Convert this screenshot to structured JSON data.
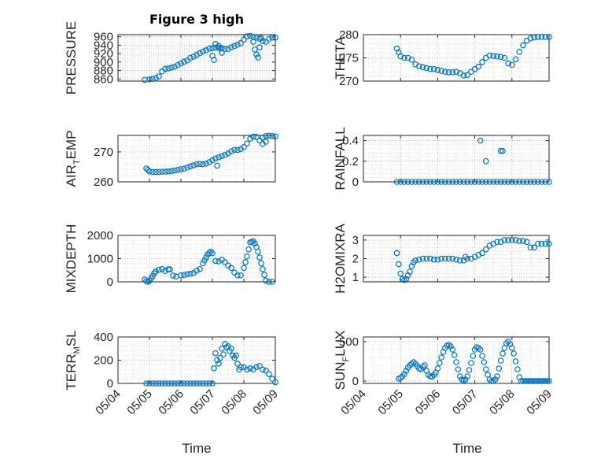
{
  "figure": {
    "title": "Figure 3 high",
    "xlabel": "Time",
    "marker_color": "#0072bd",
    "grid": "on, major and minor dotted"
  },
  "chart_data": [
    {
      "type": "scatter",
      "marker": "circle",
      "ylabel": "PRESSURE",
      "ylabel_sub": "",
      "ylabel_tail": "",
      "ylim": [
        855,
        965
      ],
      "yticks": [
        860,
        880,
        900,
        920,
        940,
        960
      ],
      "xlim": [
        "05/04",
        "05/09"
      ],
      "xticks": [
        "05/04",
        "05/05",
        "05/06",
        "05/07",
        "05/08",
        "05/09"
      ],
      "show_xtick_labels": false,
      "series": [
        {
          "x": [
            4.85,
            5.0,
            5.1,
            5.2,
            5.3,
            5.4,
            5.5,
            5.6,
            5.7,
            5.8,
            5.9,
            6.0,
            6.1,
            6.2,
            6.3,
            6.4,
            6.5,
            6.6,
            6.7,
            6.8,
            6.9,
            7.0,
            7.1,
            7.2,
            7.3,
            7.4,
            7.5,
            7.6,
            7.7,
            7.8,
            7.9,
            8.0,
            8.1,
            8.2,
            8.3,
            8.4,
            8.5,
            8.6,
            8.7,
            8.8,
            8.9,
            9.0,
            7.0,
            7.05,
            7.1,
            7.2,
            7.25,
            7.3,
            8.3,
            8.35,
            8.4,
            8.45,
            8.5,
            8.55
          ],
          "y": [
            858,
            859,
            860,
            862,
            866,
            878,
            884,
            885,
            887,
            889,
            893,
            897,
            901,
            904,
            910,
            913,
            917,
            921,
            925,
            928,
            932,
            933,
            934,
            934,
            933,
            931,
            931,
            935,
            938,
            941,
            945,
            953,
            961,
            962,
            960,
            958,
            955,
            950,
            948,
            955,
            958,
            958,
            915,
            905,
            943,
            938,
            932,
            922,
            948,
            930,
            918,
            911,
            935,
            957
          ]
        }
      ]
    },
    {
      "type": "scatter",
      "marker": "circle",
      "ylabel": "THETA",
      "ylabel_sub": "",
      "ylabel_tail": "",
      "ylim": [
        270,
        280
      ],
      "yticks": [
        270,
        275,
        280
      ],
      "xlim": [
        "05/04",
        "05/09"
      ],
      "xticks": [
        "05/04",
        "05/05",
        "05/06",
        "05/07",
        "05/08",
        "05/09"
      ],
      "show_xtick_labels": false,
      "series": [
        {
          "x": [
            4.9,
            4.95,
            5.0,
            5.1,
            5.2,
            5.3,
            5.4,
            5.5,
            5.6,
            5.7,
            5.8,
            5.9,
            6.0,
            6.1,
            6.2,
            6.3,
            6.4,
            6.5,
            6.6,
            6.7,
            6.8,
            6.9,
            7.0,
            7.1,
            7.2,
            7.3,
            7.4,
            7.5,
            7.6,
            7.7,
            7.8,
            7.9,
            8.0,
            8.1,
            8.2,
            8.3,
            8.4,
            8.5,
            8.6,
            8.7,
            8.8,
            8.9,
            9.0
          ],
          "y": [
            277,
            276.2,
            275.3,
            275,
            275,
            274.6,
            273.6,
            273.2,
            273,
            272.8,
            272.6,
            272.6,
            272.4,
            272.2,
            272,
            271.9,
            271.9,
            272,
            271.7,
            271.2,
            271.3,
            272,
            272.6,
            273.1,
            274.1,
            275,
            275.5,
            275.4,
            275.3,
            275.2,
            275,
            273.8,
            273.5,
            274.7,
            276.3,
            277.7,
            278.7,
            279.2,
            279.4,
            279.5,
            279.5,
            279.5,
            279.5
          ]
        }
      ]
    },
    {
      "type": "scatter",
      "marker": "circle",
      "ylabel": "AIR",
      "ylabel_sub": "T",
      "ylabel_tail": "EMP",
      "ylim": [
        260,
        275.5
      ],
      "yticks": [
        260,
        270
      ],
      "xlim": [
        "05/04",
        "05/09"
      ],
      "xticks": [
        "05/04",
        "05/05",
        "05/06",
        "05/07",
        "05/08",
        "05/09"
      ],
      "show_xtick_labels": false,
      "series": [
        {
          "x": [
            4.9,
            4.95,
            5.0,
            5.1,
            5.2,
            5.3,
            5.4,
            5.5,
            5.6,
            5.7,
            5.8,
            5.9,
            6.0,
            6.1,
            6.2,
            6.3,
            6.4,
            6.5,
            6.6,
            6.7,
            6.8,
            6.9,
            7.0,
            7.1,
            7.2,
            7.3,
            7.4,
            7.5,
            7.6,
            7.7,
            7.8,
            7.9,
            8.0,
            8.1,
            8.2,
            8.3,
            8.4,
            8.5,
            8.6,
            8.7,
            8.8,
            8.9,
            9.0,
            7.15,
            8.6,
            8.7
          ],
          "y": [
            264.5,
            264,
            263.5,
            263.3,
            263.3,
            263.3,
            263.4,
            263.4,
            263.5,
            263.6,
            263.8,
            264,
            264.2,
            264.4,
            264.8,
            265.2,
            265.5,
            265.9,
            266,
            265.9,
            266.1,
            266.6,
            267.2,
            267.8,
            268.2,
            268.6,
            269,
            269.5,
            270.2,
            270.7,
            270.6,
            270.9,
            271.6,
            272.8,
            274.4,
            275.1,
            275,
            273.8,
            274.8,
            275.3,
            275.4,
            275.3,
            275.2,
            265.4,
            272.7,
            273.4
          ]
        }
      ]
    },
    {
      "type": "scatter",
      "marker": "circle",
      "ylabel": "RAINFALL",
      "ylabel_sub": "",
      "ylabel_tail": "",
      "ylim": [
        0,
        0.45
      ],
      "yticks": [
        0,
        0.2,
        0.4
      ],
      "xlim": [
        "05/04",
        "05/09"
      ],
      "xticks": [
        "05/04",
        "05/05",
        "05/06",
        "05/07",
        "05/08",
        "05/09"
      ],
      "show_xtick_labels": false,
      "series": [
        {
          "x": [
            4.9,
            5.0,
            5.1,
            5.2,
            5.3,
            5.4,
            5.5,
            5.6,
            5.7,
            5.8,
            5.9,
            6.0,
            6.1,
            6.2,
            6.3,
            6.4,
            6.5,
            6.6,
            6.7,
            6.8,
            6.9,
            7.0,
            7.1,
            7.2,
            7.3,
            7.4,
            7.5,
            7.6,
            7.7,
            7.8,
            7.9,
            8.0,
            8.1,
            8.2,
            8.3,
            8.4,
            8.5,
            8.6,
            8.7,
            8.8,
            8.9,
            9.0,
            7.15,
            7.3,
            7.7,
            7.75
          ],
          "y": [
            0,
            0,
            0,
            0,
            0,
            0,
            0,
            0,
            0,
            0,
            0,
            0,
            0,
            0,
            0,
            0,
            0,
            0,
            0,
            0,
            0,
            0,
            0,
            0,
            0,
            0,
            0,
            0,
            0,
            0,
            0,
            0,
            0,
            0,
            0,
            0,
            0,
            0,
            0,
            0,
            0,
            0,
            0.4,
            0.2,
            0.3,
            0.3
          ]
        }
      ]
    },
    {
      "type": "scatter",
      "marker": "circle",
      "ylabel": "MIXDEPTH",
      "ylabel_sub": "",
      "ylabel_tail": "",
      "ylim": [
        0,
        2000
      ],
      "yticks": [
        0,
        1000,
        2000
      ],
      "xlim": [
        "05/04",
        "05/09"
      ],
      "xticks": [
        "05/04",
        "05/05",
        "05/06",
        "05/07",
        "05/08",
        "05/09"
      ],
      "show_xtick_labels": false,
      "series": [
        {
          "x": [
            4.85,
            4.9,
            4.95,
            5.0,
            5.05,
            5.1,
            5.15,
            5.2,
            5.3,
            5.4,
            5.5,
            5.6,
            5.65,
            5.75,
            5.85,
            6.0,
            6.1,
            6.2,
            6.3,
            6.4,
            6.5,
            6.6,
            6.7,
            6.75,
            6.8,
            6.85,
            6.9,
            6.95,
            7.0,
            7.1,
            7.2,
            7.3,
            7.4,
            7.5,
            7.6,
            7.7,
            7.8,
            7.9,
            8.0,
            8.05,
            8.1,
            8.15,
            8.2,
            8.25,
            8.3,
            8.35,
            8.4,
            8.45,
            8.5,
            8.55,
            8.6,
            8.65,
            8.7,
            8.8,
            8.9
          ],
          "y": [
            100,
            30,
            0,
            50,
            150,
            250,
            370,
            450,
            520,
            550,
            470,
            540,
            540,
            270,
            230,
            280,
            300,
            330,
            350,
            380,
            480,
            550,
            800,
            920,
            1050,
            1180,
            1250,
            1300,
            1230,
            900,
            880,
            950,
            850,
            700,
            600,
            400,
            280,
            280,
            600,
            850,
            1100,
            1400,
            1700,
            1720,
            1750,
            1650,
            1500,
            1300,
            1050,
            800,
            550,
            300,
            50,
            0,
            0
          ]
        }
      ]
    },
    {
      "type": "scatter",
      "marker": "circle",
      "ylabel": "H2OMIXRA",
      "ylabel_sub": "",
      "ylabel_tail": "",
      "ylim": [
        0.75,
        3.25
      ],
      "yticks": [
        1,
        2,
        3
      ],
      "xlim": [
        "05/04",
        "05/09"
      ],
      "xticks": [
        "05/04",
        "05/05",
        "05/06",
        "05/07",
        "05/08",
        "05/09"
      ],
      "show_xtick_labels": false,
      "series": [
        {
          "x": [
            4.9,
            4.95,
            5.0,
            5.05,
            5.1,
            5.15,
            5.2,
            5.25,
            5.3,
            5.35,
            5.4,
            5.5,
            5.6,
            5.7,
            5.8,
            5.9,
            6.0,
            6.1,
            6.2,
            6.3,
            6.4,
            6.5,
            6.6,
            6.7,
            6.75,
            6.8,
            6.9,
            7.0,
            7.1,
            7.2,
            7.3,
            7.4,
            7.5,
            7.6,
            7.7,
            7.8,
            7.9,
            8.0,
            8.1,
            8.2,
            8.3,
            8.4,
            8.5,
            8.6,
            8.7,
            8.8,
            8.9,
            9.0
          ],
          "y": [
            2.3,
            1.7,
            1.2,
            0.9,
            0.85,
            0.9,
            1.1,
            1.3,
            1.6,
            1.8,
            1.9,
            1.95,
            2,
            2,
            2,
            1.95,
            1.95,
            2,
            2,
            2,
            2,
            1.95,
            1.9,
            1.9,
            2.1,
            2,
            2,
            2.1,
            2.2,
            2.3,
            2.5,
            2.7,
            2.8,
            2.9,
            2.9,
            3,
            3,
            3,
            3,
            2.95,
            2.95,
            2.9,
            2.6,
            2.6,
            2.8,
            2.8,
            2.8,
            2.8
          ]
        }
      ]
    },
    {
      "type": "scatter",
      "marker": "circle",
      "ylabel": "TERR",
      "ylabel_sub": "M",
      "ylabel_tail": "SL",
      "ylim": [
        0,
        400
      ],
      "yticks": [
        0,
        200,
        400
      ],
      "xlim": [
        "05/04",
        "05/09"
      ],
      "xticks": [
        "05/04",
        "05/05",
        "05/06",
        "05/07",
        "05/08",
        "05/09"
      ],
      "show_xtick_labels": true,
      "series": [
        {
          "x": [
            4.9,
            5.0,
            5.1,
            5.2,
            5.3,
            5.4,
            5.5,
            5.6,
            5.7,
            5.8,
            5.9,
            6.0,
            6.1,
            6.2,
            6.3,
            6.4,
            6.5,
            6.6,
            6.7,
            6.8,
            6.9,
            7.0,
            7.05,
            7.1,
            7.15,
            7.2,
            7.25,
            7.3,
            7.35,
            7.4,
            7.45,
            7.5,
            7.55,
            7.6,
            7.65,
            7.7,
            7.75,
            7.8,
            7.85,
            7.9,
            8.0,
            8.1,
            8.2,
            8.3,
            8.4,
            8.5,
            8.6,
            8.7,
            8.8,
            8.9,
            9.0
          ],
          "y": [
            0,
            0,
            0,
            0,
            0,
            0,
            0,
            0,
            0,
            0,
            0,
            0,
            0,
            0,
            0,
            0,
            0,
            0,
            0,
            0,
            0,
            0,
            130,
            260,
            200,
            170,
            220,
            300,
            250,
            340,
            310,
            320,
            280,
            300,
            240,
            220,
            240,
            170,
            120,
            140,
            140,
            120,
            130,
            120,
            140,
            150,
            120,
            110,
            80,
            40,
            10
          ]
        }
      ]
    },
    {
      "type": "scatter",
      "marker": "circle",
      "ylabel": "SUN",
      "ylabel_sub": "F",
      "ylabel_tail": "LUX",
      "ylim": [
        -30,
        560
      ],
      "yticks": [
        0,
        500
      ],
      "xlim": [
        "05/04",
        "05/09"
      ],
      "xticks": [
        "05/04",
        "05/05",
        "05/06",
        "05/07",
        "05/08",
        "05/09"
      ],
      "show_xtick_labels": true,
      "series": [
        {
          "x": [
            4.95,
            5.0,
            5.05,
            5.1,
            5.15,
            5.2,
            5.25,
            5.3,
            5.35,
            5.4,
            5.45,
            5.5,
            5.55,
            5.6,
            5.65,
            5.7,
            5.75,
            5.8,
            5.85,
            5.9,
            5.95,
            6.0,
            6.05,
            6.1,
            6.15,
            6.2,
            6.25,
            6.3,
            6.35,
            6.4,
            6.45,
            6.5,
            6.55,
            6.6,
            6.65,
            6.7,
            6.75,
            6.8,
            6.85,
            6.9,
            6.95,
            7.0,
            7.05,
            7.1,
            7.15,
            7.2,
            7.25,
            7.3,
            7.35,
            7.4,
            7.45,
            7.5,
            7.55,
            7.6,
            7.65,
            7.7,
            7.75,
            7.8,
            7.85,
            7.9,
            7.95,
            8.0,
            8.05,
            8.1,
            8.15,
            8.2,
            8.25,
            8.3,
            8.35,
            8.4,
            8.45,
            8.5,
            8.55,
            8.6,
            8.65,
            8.7,
            8.75,
            8.8,
            8.85,
            8.9,
            8.95,
            9.0
          ],
          "y": [
            30,
            40,
            60,
            90,
            130,
            170,
            200,
            220,
            240,
            220,
            190,
            160,
            150,
            180,
            200,
            130,
            80,
            60,
            55,
            80,
            110,
            160,
            230,
            300,
            370,
            420,
            450,
            460,
            440,
            400,
            330,
            240,
            150,
            60,
            20,
            10,
            20,
            60,
            140,
            230,
            320,
            400,
            430,
            420,
            400,
            320,
            240,
            150,
            80,
            20,
            0,
            0,
            20,
            60,
            160,
            260,
            350,
            420,
            480,
            500,
            470,
            420,
            350,
            250,
            150,
            50,
            0,
            0,
            0,
            0,
            0,
            0,
            0,
            0,
            0,
            0,
            0,
            0,
            0,
            0,
            0,
            0
          ]
        }
      ]
    }
  ]
}
